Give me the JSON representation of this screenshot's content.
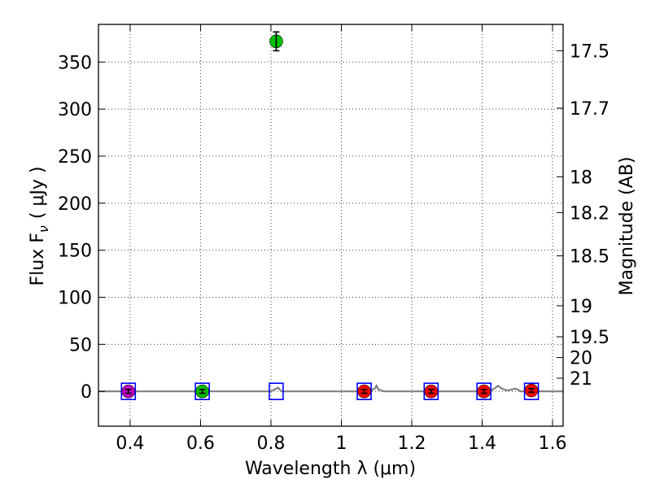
{
  "chart_data": {
    "type": "scatter",
    "xlabel": "Wavelength  λ (μm)",
    "ylabel": "Flux  F",
    "ylabel_sub": "ν",
    "ylabel_unit": "( μJy )",
    "y2label": "Magnitude (AB)",
    "xlim": [
      0.31,
      1.63
    ],
    "ylim": [
      -37,
      390
    ],
    "grid": true,
    "x_ticks": [
      0.4,
      0.6,
      0.8,
      1.0,
      1.2,
      1.4,
      1.6
    ],
    "x_tick_labels": [
      "0.4",
      "0.6",
      "0.8",
      "1",
      "1.2",
      "1.4",
      "1.6"
    ],
    "y_ticks": [
      0,
      50,
      100,
      150,
      200,
      250,
      300,
      350
    ],
    "y_tick_labels": [
      "0",
      "50",
      "100",
      "150",
      "200",
      "250",
      "300",
      "350"
    ],
    "y2_ticks": [
      {
        "label": "17.5",
        "flux": 362
      },
      {
        "label": "17.7",
        "flux": 301
      },
      {
        "label": "18",
        "flux": 228
      },
      {
        "label": "18.2",
        "flux": 190
      },
      {
        "label": "18.5",
        "flux": 144
      },
      {
        "label": "19",
        "flux": 91
      },
      {
        "label": "19.5",
        "flux": 58
      },
      {
        "label": "20",
        "flux": 36
      },
      {
        "label": "21",
        "flux": 14
      }
    ],
    "points": [
      {
        "x": 0.395,
        "y": 0,
        "err": 2,
        "color": "#bf00bf"
      },
      {
        "x": 0.605,
        "y": 0,
        "err": 2,
        "color": "#00bf00"
      },
      {
        "x": 0.815,
        "y": 372,
        "err": 10,
        "color": "#00bf00"
      },
      {
        "x": 1.065,
        "y": 0,
        "err": 2,
        "color": "#ff0000"
      },
      {
        "x": 1.255,
        "y": 0,
        "err": 2,
        "color": "#ff0000"
      },
      {
        "x": 1.405,
        "y": 0,
        "err": 2,
        "color": "#ff0000"
      },
      {
        "x": 1.54,
        "y": 1,
        "err": 2,
        "color": "#ff0000"
      }
    ],
    "model_boxes": [
      {
        "x": 0.395,
        "y": 0
      },
      {
        "x": 0.605,
        "y": 0
      },
      {
        "x": 0.815,
        "y": 0
      },
      {
        "x": 1.065,
        "y": 0
      },
      {
        "x": 1.255,
        "y": 0
      },
      {
        "x": 1.405,
        "y": 0
      },
      {
        "x": 1.54,
        "y": 0
      }
    ],
    "model_spectrum": {
      "color": "#808080",
      "x": [
        0.31,
        0.8,
        0.81,
        0.82,
        0.83,
        1.08,
        1.095,
        1.1,
        1.105,
        1.12,
        1.42,
        1.435,
        1.445,
        1.455,
        1.47,
        1.485,
        1.495,
        1.51,
        1.63
      ],
      "y": [
        0,
        0,
        2,
        4,
        0,
        0,
        3,
        6,
        2,
        0,
        0,
        3,
        6,
        3,
        1,
        2,
        3,
        0,
        0
      ]
    },
    "colors": {
      "box": "#0000ff",
      "errorbar": "#000000"
    }
  }
}
